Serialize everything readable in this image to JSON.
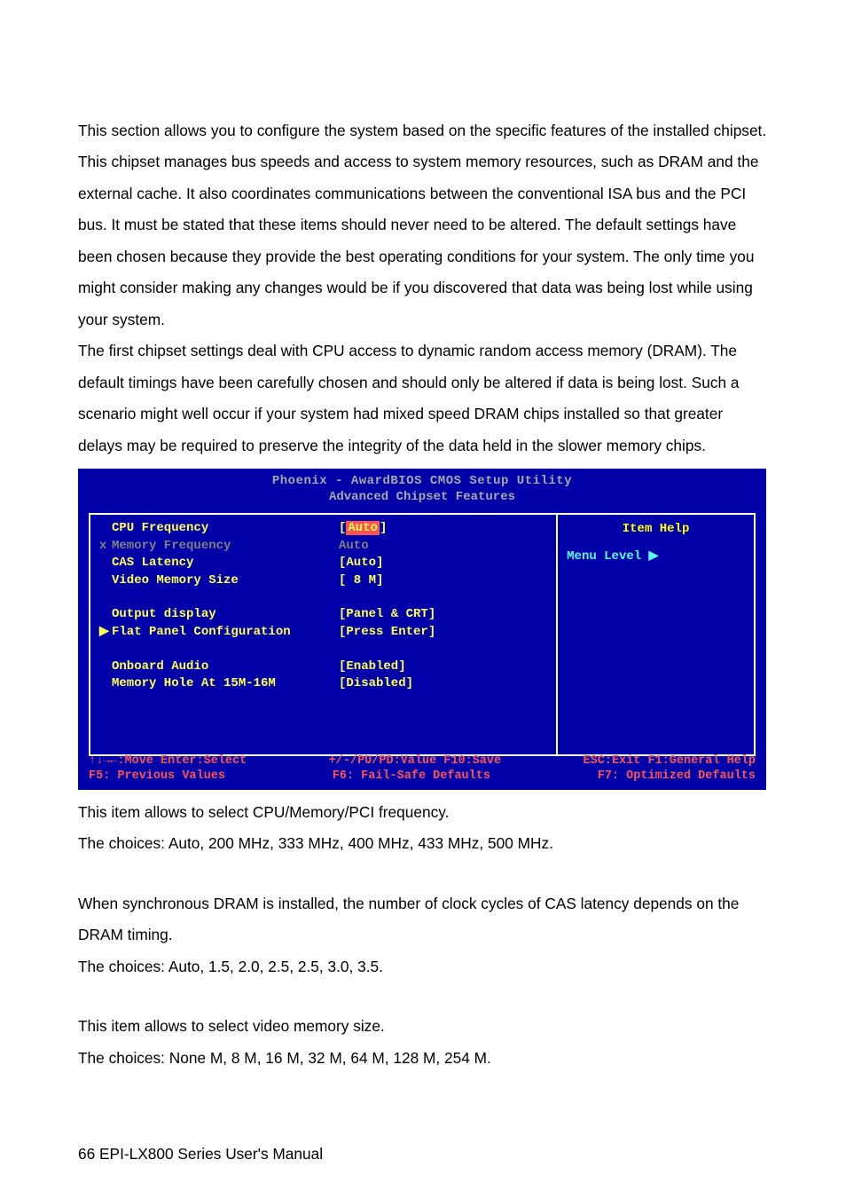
{
  "paragraphs": {
    "p1": "This section allows you to configure the system based on the specific features of the installed chipset. This chipset manages bus speeds and access to system memory resources, such as DRAM and the external cache. It also coordinates communications between the conventional ISA bus and the PCI bus. It must be stated that these items should never need to be altered. The default settings have been chosen because they provide the best operating conditions for your system. The only time you might consider making any changes would be if you discovered that data was being lost while using your system.",
    "p2": "The first chipset settings deal with CPU access to dynamic random access memory (DRAM). The default timings have been carefully chosen and should only be altered if data is being lost. Such a scenario might well occur if your system had mixed speed DRAM chips installed so that greater delays may be required to preserve the integrity of the data held in the slower memory chips.",
    "p3a": "This item allows to select CPU/Memory/PCI frequency.",
    "p3b": "The choices: Auto, 200 MHz, 333 MHz, 400 MHz, 433 MHz, 500 MHz.",
    "p4a": "When synchronous DRAM is installed, the number of clock cycles of CAS latency depends on the DRAM timing.",
    "p4b": "The choices: Auto, 1.5, 2.0, 2.5, 2.5, 3.0, 3.5.",
    "p5a": "This item allows to select video memory size.",
    "p5b": "The choices: None M, 8 M, 16 M, 32 M, 64 M, 128 M, 254 M."
  },
  "bios": {
    "title": "Phoenix - AwardBIOS CMOS Setup Utility",
    "subtitle": "Advanced Chipset Features",
    "rows": {
      "cpu_freq": {
        "label": "CPU Frequency",
        "value": "Auto",
        "highlighted": true,
        "prefix": ""
      },
      "mem_freq": {
        "label": "Memory Frequency",
        "value": "Auto",
        "prefix": "x",
        "gray": true
      },
      "cas_lat": {
        "label": "CAS Latency",
        "value": "[Auto]",
        "prefix": ""
      },
      "vid_mem": {
        "label": "Video Memory Size",
        "value": "[   8 M]",
        "prefix": ""
      },
      "output": {
        "label": "Output display",
        "value": "[Panel & CRT]",
        "prefix": ""
      },
      "flat_panel": {
        "label": "Flat Panel Configuration",
        "value": "[Press Enter]",
        "prefix": "▶"
      },
      "audio": {
        "label": "Onboard Audio",
        "value": "[Enabled]",
        "prefix": ""
      },
      "mem_hole": {
        "label": "Memory Hole At 15M-16M",
        "value": "[Disabled]",
        "prefix": ""
      }
    },
    "help": {
      "title": "Item Help",
      "menu_level": "Menu Level   ▶"
    },
    "footer": {
      "line1_left": "↑↓→←:Move  Enter:Select",
      "line1_mid": "+/-/PU/PD:Value  F10:Save",
      "line1_right": "ESC:Exit  F1:General Help",
      "line2_left": "F5: Previous Values",
      "line2_mid": "F6: Fail-Safe Defaults",
      "line2_right": "F7: Optimized Defaults"
    }
  },
  "footer_page": "66   EPI-LX800 Series User's Manual"
}
